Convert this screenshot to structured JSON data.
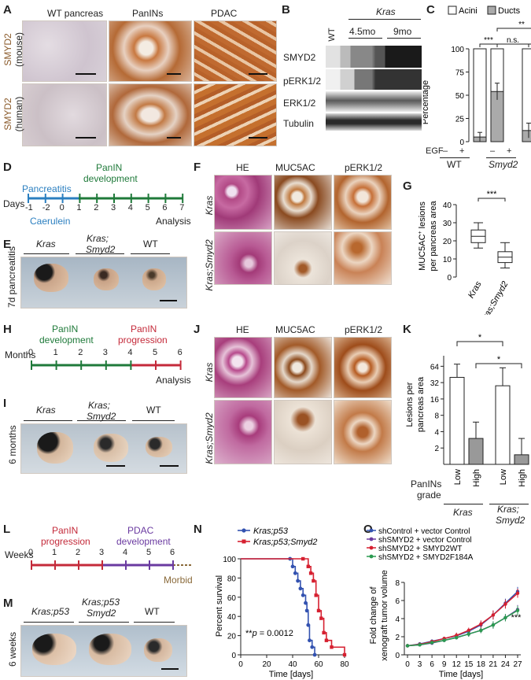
{
  "A": {
    "letter": "A",
    "col1": "WT pancreas",
    "col2": "PanINs",
    "col3": "PDAC",
    "row1_a": "SMYD2",
    "row1_b": "(mouse)",
    "row2_a": "SMYD2",
    "row2_b": "(human)"
  },
  "B": {
    "letter": "B",
    "kras": "Kras",
    "wt": "WT",
    "t1": "4.5mo",
    "t2": "9mo",
    "bands": [
      "SMYD2",
      "pERK1/2",
      "ERK1/2",
      "Tubulin"
    ]
  },
  "C": {
    "letter": "C",
    "legend_acini": "Acini",
    "legend_ducts": "Ducts",
    "ylabel": "Percentage",
    "yticks": [
      "0",
      "25",
      "50",
      "75",
      "100"
    ],
    "egf": "EGF",
    "minus": "–",
    "plus": "+",
    "group1": "WT",
    "group2": "Smyd2",
    "sig1": "***",
    "sig2": "n.s.",
    "sig3": "n.s.",
    "sig4": "**"
  },
  "D": {
    "letter": "D",
    "top": "PanIN",
    "top2": "development",
    "left": "Pancreatitis",
    "days_label": "Days",
    "ticks": [
      "-1",
      "-2",
      "0",
      "1",
      "2",
      "3",
      "4",
      "5",
      "6",
      "7"
    ],
    "bottom_left": "Caerulein",
    "bottom_right": "Analysis"
  },
  "E": {
    "letter": "E",
    "side": "7d pancreatitis",
    "c1": "Kras",
    "c2a": "Kras;",
    "c2b": "Smyd2",
    "c3": "WT"
  },
  "F": {
    "letter": "F",
    "c1": "HE",
    "c2": "MUC5AC",
    "c3": "pERK1/2",
    "r1": "Kras",
    "r2": "Kras;Smyd2"
  },
  "G": {
    "letter": "G",
    "ylabel_a": "MUC5AC",
    "ylabel_sup": "+",
    "ylabel_b": " lesions",
    "ylabel_c": "per pancreas area",
    "yticks": [
      "0",
      "10",
      "20",
      "30",
      "40"
    ],
    "sig": "***",
    "x1": "Kras",
    "x2": "Kras;Smyd2"
  },
  "H": {
    "letter": "H",
    "left_a": "PanIN",
    "left_b": "development",
    "right_a": "PanIN",
    "right_b": "progression",
    "months_label": "Months",
    "ticks": [
      "0",
      "1",
      "2",
      "3",
      "4",
      "5",
      "6"
    ],
    "bottom_right": "Analysis"
  },
  "I": {
    "letter": "I",
    "side": "6 months",
    "c1": "Kras",
    "c2a": "Kras;",
    "c2b": "Smyd2",
    "c3": "WT"
  },
  "J": {
    "letter": "J",
    "c1": "HE",
    "c2": "MUC5AC",
    "c3": "pERK1/2",
    "r1": "Kras",
    "r2": "Kras;Smyd2"
  },
  "K": {
    "letter": "K",
    "ylabel_a": "Lesions per",
    "ylabel_b": "pancreas area",
    "yticks": [
      "2",
      "4",
      "8",
      "16",
      "32",
      "64"
    ],
    "sig1": "*",
    "sig2": "*",
    "grade": "PanINs",
    "grade2": "grade",
    "x": [
      "Low",
      "High",
      "Low",
      "High"
    ],
    "g1": "Kras",
    "g2a": "Kras;",
    "g2b": "Smyd2"
  },
  "L": {
    "letter": "L",
    "left_a": "PanIN",
    "left_b": "progression",
    "right_a": "PDAC",
    "right_b": "development",
    "weeks_label": "Weeks",
    "ticks": [
      "0",
      "1",
      "2",
      "3",
      "4",
      "5",
      "6"
    ],
    "bottom_right": "Morbid"
  },
  "M": {
    "letter": "M",
    "side": "6 weeks",
    "c1": "Kras;p53",
    "c2a": "Kras;p53",
    "c2b": "Smyd2",
    "c3": "WT"
  },
  "N": {
    "letter": "N",
    "legend1": "Kras;p53",
    "legend2": "Kras;p53;Smyd2",
    "ylabel": "Percent survival",
    "xlabel": "Time [days]",
    "pval_a": "**",
    "pval_b": "p",
    "pval_c": " = 0.0012",
    "yticks": [
      "0",
      "20",
      "40",
      "60",
      "80",
      "100"
    ],
    "xticks": [
      "0",
      "20",
      "40",
      "60",
      "80"
    ]
  },
  "O": {
    "letter": "O",
    "ylabel_a": "Fold change of",
    "ylabel_b": "xenograft tumor volume",
    "xlabel": "Time [days]",
    "yticks": [
      "0",
      "2",
      "4",
      "6",
      "8"
    ],
    "xticks": [
      "0",
      "3",
      "6",
      "9",
      "12",
      "15",
      "18",
      "21",
      "24",
      "27"
    ],
    "sig": "***"
  },
  "chart_data": [
    {
      "panel": "C",
      "type": "bar",
      "categories": [
        "WT –",
        "WT +",
        "Smyd2 –",
        "Smyd2 +"
      ],
      "series": [
        {
          "name": "Ducts",
          "values": [
            5,
            54,
            12,
            25
          ]
        },
        {
          "name": "Acini",
          "values": [
            95,
            46,
            88,
            75
          ]
        }
      ],
      "errors": [
        5,
        9,
        8,
        10
      ],
      "ylim": [
        0,
        100
      ],
      "ylabel": "Percentage"
    },
    {
      "panel": "G",
      "type": "box",
      "categories": [
        "Kras",
        "Kras;Smyd2"
      ],
      "boxes": [
        {
          "min": 16,
          "q1": 19,
          "median": 22.5,
          "q3": 26,
          "max": 30
        },
        {
          "min": 5,
          "q1": 8,
          "median": 11,
          "q3": 14,
          "max": 19
        }
      ],
      "ylim": [
        0,
        40
      ]
    },
    {
      "panel": "K",
      "type": "bar",
      "log": true,
      "categories": [
        "Kras Low",
        "Kras High",
        "Kras;Smyd2 Low",
        "Kras;Smyd2 High"
      ],
      "values": [
        40,
        3,
        28,
        1.5
      ],
      "err_hi": [
        70,
        6,
        60,
        3
      ],
      "ylim": [
        1,
        100
      ]
    },
    {
      "panel": "N",
      "type": "line",
      "xlabel": "Time [days]",
      "ylabel": "Percent survival",
      "series": [
        {
          "name": "Kras;p53",
          "color": "#3352b0",
          "x": [
            0,
            38,
            40,
            42,
            44,
            46,
            48,
            50,
            51,
            52,
            53,
            55,
            57
          ],
          "y": [
            100,
            100,
            92,
            85,
            77,
            69,
            62,
            54,
            46,
            31,
            15,
            8,
            0
          ]
        },
        {
          "name": "Kras;p53;Smyd2",
          "color": "#d62030",
          "x": [
            0,
            48,
            52,
            54,
            56,
            58,
            60,
            62,
            64,
            66,
            70,
            80
          ],
          "y": [
            100,
            100,
            92,
            85,
            77,
            62,
            46,
            38,
            23,
            15,
            8,
            0
          ]
        }
      ],
      "ylim": [
        0,
        100
      ],
      "xlim": [
        0,
        80
      ]
    },
    {
      "panel": "O",
      "type": "line",
      "xlabel": "Time [days]",
      "x": [
        0,
        3,
        6,
        9,
        12,
        15,
        18,
        21,
        24,
        27
      ],
      "series": [
        {
          "name": "shControl + vector Control",
          "color": "#3352b0",
          "values": [
            1,
            1.2,
            1.5,
            1.8,
            2.1,
            2.6,
            3.3,
            4.4,
            5.7,
            7.0
          ],
          "err": [
            0.1,
            0.2,
            0.2,
            0.2,
            0.3,
            0.3,
            0.4,
            0.5,
            0.5,
            0.5
          ]
        },
        {
          "name": "shSMYD2 + vector Control",
          "color": "#6a3aa0",
          "values": [
            1,
            1.1,
            1.3,
            1.6,
            1.9,
            2.3,
            2.7,
            3.3,
            4.1,
            5.0
          ],
          "err": [
            0.1,
            0.1,
            0.2,
            0.2,
            0.2,
            0.3,
            0.3,
            0.4,
            0.4,
            0.5
          ]
        },
        {
          "name": "shSMYD2 + SMYD2WT",
          "color": "#d62030",
          "values": [
            1,
            1.15,
            1.45,
            1.8,
            2.15,
            2.7,
            3.4,
            4.4,
            5.6,
            6.8
          ],
          "err": [
            0.1,
            0.2,
            0.2,
            0.2,
            0.3,
            0.3,
            0.4,
            0.5,
            0.5,
            0.5
          ]
        },
        {
          "name": "shSMYD2 + SMYD2F184A",
          "color": "#2a9a50",
          "values": [
            1,
            1.1,
            1.35,
            1.6,
            1.9,
            2.3,
            2.7,
            3.3,
            4.1,
            4.9
          ],
          "err": [
            0.1,
            0.1,
            0.2,
            0.2,
            0.2,
            0.3,
            0.3,
            0.4,
            0.4,
            0.5
          ]
        }
      ],
      "ylim": [
        0,
        8
      ],
      "xlim": [
        0,
        27
      ]
    }
  ]
}
